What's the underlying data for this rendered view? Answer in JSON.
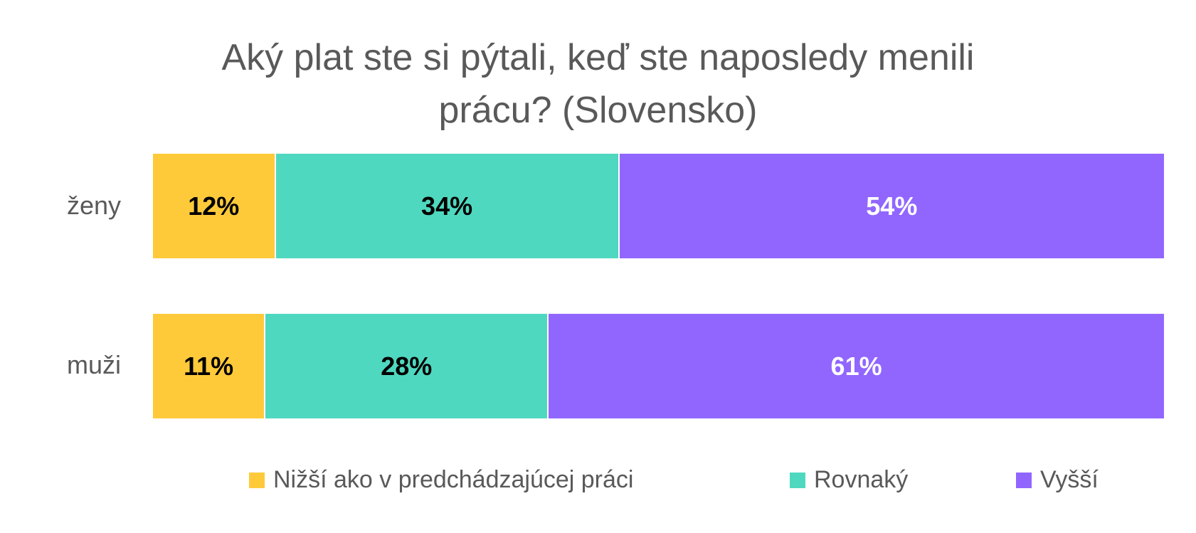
{
  "chart_data": {
    "type": "bar",
    "orientation": "horizontal",
    "stacked": "100%",
    "title_lines": [
      "Aký plat ste si pýtali, keď ste naposledy menili",
      "prácu? (Slovensko)"
    ],
    "categories": [
      "ženy",
      "muži"
    ],
    "series": [
      {
        "name": "Nižší ako v predchádzajúcej práci",
        "color": "#FFCA3A",
        "label_color": "#000000",
        "values": [
          12,
          11
        ],
        "labels": [
          "12%",
          "11%"
        ]
      },
      {
        "name": "Rovnaký",
        "color": "#4FD8C0",
        "label_color": "#000000",
        "values": [
          34,
          28
        ],
        "labels": [
          "34%",
          "28%"
        ]
      },
      {
        "name": "Vyšší",
        "color": "#9166FF",
        "label_color": "#FFFFFF",
        "values": [
          54,
          61
        ],
        "labels": [
          "54%",
          "61%"
        ]
      }
    ],
    "xlim": [
      0,
      100
    ],
    "grid": false,
    "legend_position": "bottom"
  }
}
